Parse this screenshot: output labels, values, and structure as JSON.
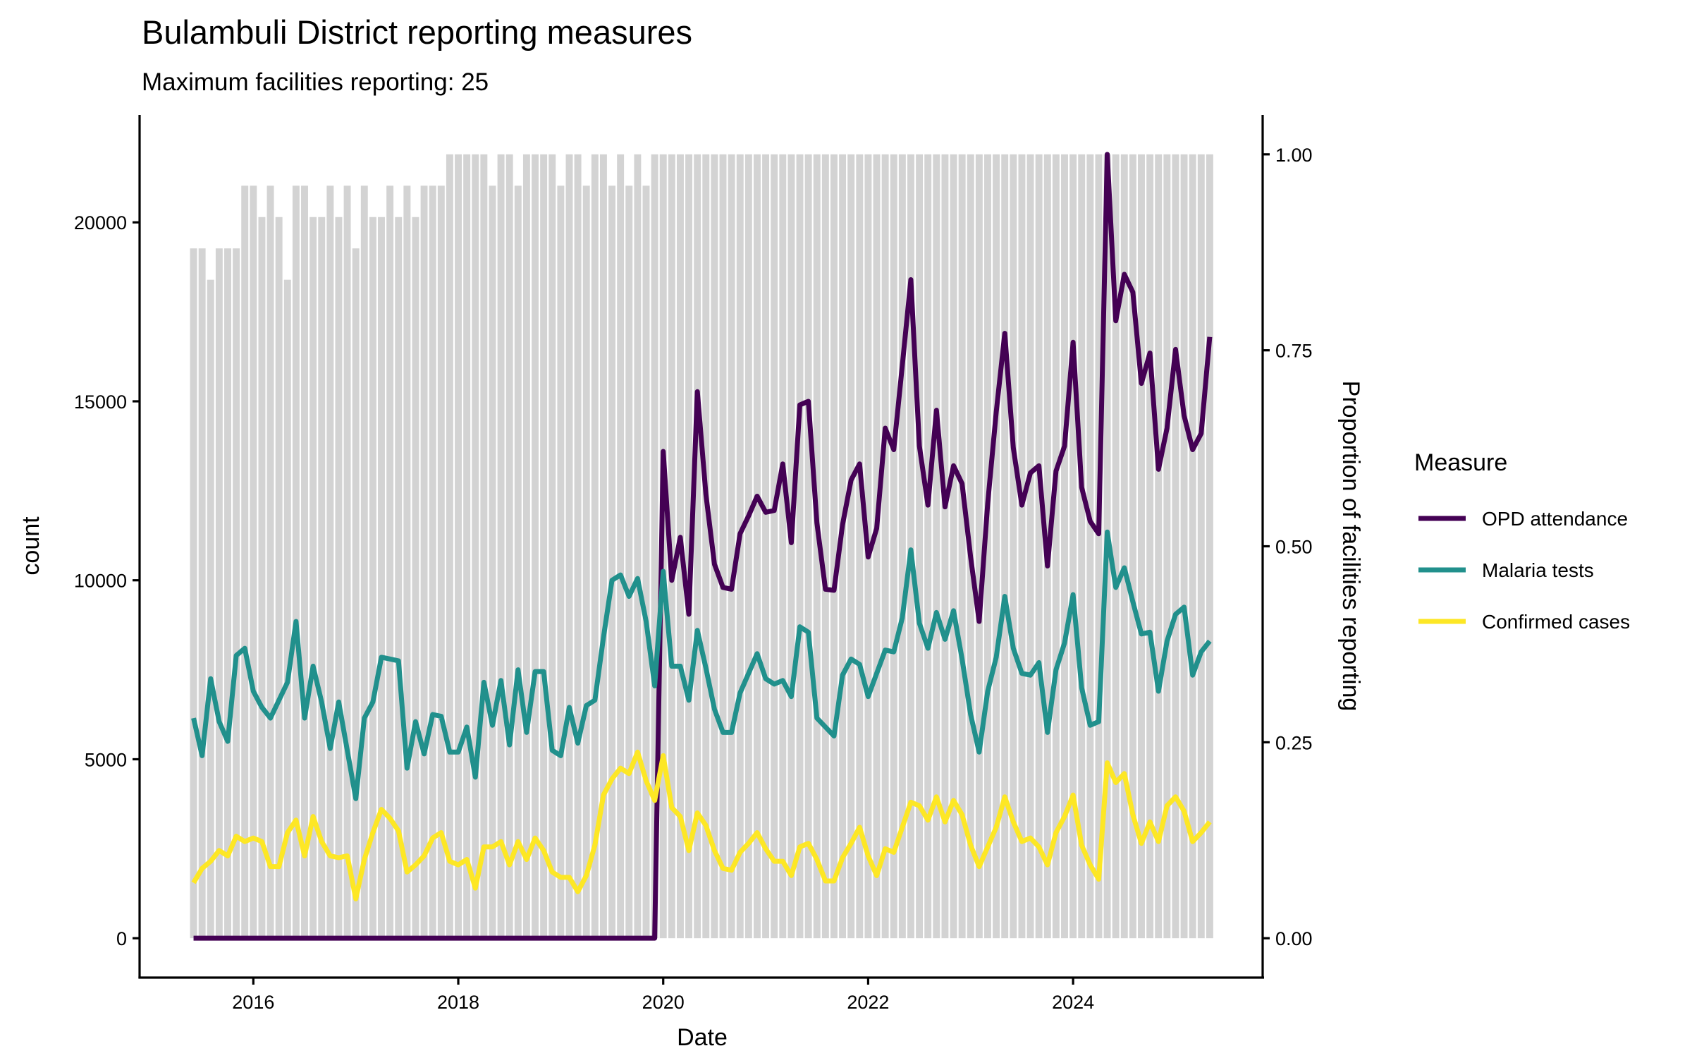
{
  "chart_data": {
    "type": "line",
    "title": "Bulambuli District reporting measures",
    "subtitle": "Maximum facilities reporting: 25",
    "xlabel": "Date",
    "ylabel": "count",
    "y2label": "Proportion of facilities reporting",
    "x_start": "2015-06",
    "x_frequency": "monthly",
    "x_count": 120,
    "xlim": [
      2014.89,
      2025.85
    ],
    "ylim": [
      -1100,
      23000
    ],
    "y2_scale_max_count": 21900,
    "grid": false,
    "x_ticks": [
      2016,
      2018,
      2020,
      2022,
      2024
    ],
    "x_tick_labels": [
      "2016",
      "2018",
      "2020",
      "2022",
      "2024"
    ],
    "y_ticks": [
      0,
      5000,
      10000,
      15000,
      20000
    ],
    "y_tick_labels": [
      "0",
      "5000",
      "10000",
      "15000",
      "20000"
    ],
    "y2_ticks": [
      0,
      0.25,
      0.5,
      0.75,
      1.0
    ],
    "y2_tick_labels": [
      "0.00",
      "0.25",
      "0.50",
      "0.75",
      "1.00"
    ],
    "legend": {
      "title": "Measure",
      "position": "right"
    },
    "bars": {
      "name": "Proportion of facilities reporting",
      "color": "#d3d3d3",
      "values": [
        0.88,
        0.88,
        0.84,
        0.88,
        0.88,
        0.88,
        0.96,
        0.96,
        0.92,
        0.96,
        0.92,
        0.84,
        0.96,
        0.96,
        0.92,
        0.92,
        0.96,
        0.92,
        0.96,
        0.88,
        0.96,
        0.92,
        0.92,
        0.96,
        0.92,
        0.96,
        0.92,
        0.96,
        0.96,
        0.96,
        1.0,
        1.0,
        1.0,
        1.0,
        1.0,
        0.96,
        1.0,
        1.0,
        0.96,
        1.0,
        1.0,
        1.0,
        1.0,
        0.96,
        1.0,
        1.0,
        0.96,
        1.0,
        1.0,
        0.96,
        1.0,
        0.96,
        1.0,
        0.96,
        1.0,
        1.0,
        1.0,
        1.0,
        1.0,
        1.0,
        1.0,
        1.0,
        1.0,
        1.0,
        1.0,
        1.0,
        1.0,
        1.0,
        1.0,
        1.0,
        1.0,
        1.0,
        1.0,
        1.0,
        1.0,
        1.0,
        1.0,
        1.0,
        1.0,
        1.0,
        1.0,
        1.0,
        1.0,
        1.0,
        1.0,
        1.0,
        1.0,
        1.0,
        1.0,
        1.0,
        1.0,
        1.0,
        1.0,
        1.0,
        1.0,
        1.0,
        1.0,
        1.0,
        1.0,
        1.0,
        1.0,
        1.0,
        1.0,
        1.0,
        1.0,
        1.0,
        1.0,
        1.0,
        1.0,
        1.0,
        1.0,
        1.0,
        1.0,
        1.0,
        1.0,
        1.0,
        1.0,
        1.0,
        1.0,
        1.0
      ]
    },
    "series": [
      {
        "name": "OPD attendance",
        "color": "#440154",
        "values": [
          0,
          0,
          0,
          0,
          0,
          0,
          0,
          0,
          0,
          0,
          0,
          0,
          0,
          0,
          0,
          0,
          0,
          0,
          0,
          0,
          0,
          0,
          0,
          0,
          0,
          0,
          0,
          0,
          0,
          0,
          0,
          0,
          0,
          0,
          0,
          0,
          0,
          0,
          0,
          0,
          0,
          0,
          0,
          0,
          0,
          0,
          0,
          0,
          0,
          0,
          0,
          0,
          0,
          0,
          0,
          13600,
          10000,
          11200,
          9050,
          15270,
          12400,
          10450,
          9800,
          9750,
          11300,
          11800,
          12350,
          11900,
          11950,
          13250,
          11050,
          14900,
          15000,
          11600,
          9750,
          9720,
          11550,
          12800,
          13250,
          10650,
          11450,
          14250,
          13650,
          16000,
          18400,
          13750,
          12100,
          14750,
          12050,
          13200,
          12700,
          10650,
          8850,
          12150,
          14700,
          16900,
          13700,
          12100,
          13000,
          13200,
          10400,
          13050,
          13750,
          16650,
          12600,
          11650,
          11300,
          21900,
          17250,
          18550,
          18050,
          15500,
          16350,
          13100,
          14250,
          16450,
          14600,
          13650,
          14100,
          16800
        ]
      },
      {
        "name": "Malaria tests",
        "color": "#21908C",
        "values": [
          6150,
          5100,
          7250,
          6050,
          5500,
          7900,
          8100,
          6900,
          6450,
          6150,
          6650,
          7150,
          8850,
          6150,
          7600,
          6600,
          5300,
          6600,
          5250,
          3900,
          6150,
          6600,
          7850,
          7800,
          7750,
          4750,
          6050,
          5150,
          6250,
          6200,
          5200,
          5200,
          5900,
          4500,
          7150,
          5950,
          7200,
          5400,
          7500,
          5750,
          7450,
          7450,
          5250,
          5100,
          6450,
          5450,
          6500,
          6650,
          8400,
          10000,
          10150,
          9550,
          10050,
          8850,
          7050,
          10250,
          7600,
          7600,
          6650,
          8600,
          7550,
          6400,
          5750,
          5750,
          6850,
          7400,
          7950,
          7250,
          7100,
          7200,
          6750,
          8700,
          8550,
          6150,
          5900,
          5650,
          7350,
          7800,
          7650,
          6750,
          7400,
          8050,
          8000,
          8950,
          10850,
          8800,
          8100,
          9100,
          8350,
          9150,
          7800,
          6250,
          5200,
          6900,
          7850,
          9550,
          8100,
          7400,
          7350,
          7700,
          5750,
          7500,
          8250,
          9600,
          7000,
          5950,
          6050,
          11350,
          9800,
          10350,
          9400,
          8500,
          8550,
          6900,
          8300,
          9050,
          9250,
          7350,
          8000,
          8300
        ]
      },
      {
        "name": "Confirmed cases",
        "color": "#FDE725",
        "values": [
          1550,
          1950,
          2150,
          2450,
          2300,
          2850,
          2700,
          2800,
          2700,
          2000,
          2000,
          2950,
          3300,
          2300,
          3400,
          2700,
          2300,
          2250,
          2300,
          1100,
          2200,
          2950,
          3600,
          3350,
          3000,
          1850,
          2050,
          2300,
          2800,
          2950,
          2150,
          2050,
          2200,
          1400,
          2550,
          2550,
          2700,
          2050,
          2700,
          2200,
          2800,
          2450,
          1850,
          1700,
          1700,
          1300,
          1750,
          2600,
          4000,
          4450,
          4750,
          4600,
          5200,
          4400,
          3850,
          5100,
          3650,
          3400,
          2450,
          3500,
          3150,
          2450,
          1950,
          1900,
          2400,
          2650,
          2950,
          2500,
          2150,
          2150,
          1750,
          2550,
          2650,
          2200,
          1600,
          1600,
          2250,
          2650,
          3100,
          2300,
          1750,
          2500,
          2400,
          3100,
          3800,
          3700,
          3300,
          3950,
          3250,
          3850,
          3450,
          2600,
          2000,
          2550,
          3100,
          3950,
          3250,
          2700,
          2800,
          2550,
          2050,
          2950,
          3400,
          4000,
          2600,
          2050,
          1650,
          4900,
          4350,
          4600,
          3450,
          2650,
          3250,
          2700,
          3700,
          3950,
          3550,
          2700,
          2950,
          3250
        ]
      }
    ]
  }
}
